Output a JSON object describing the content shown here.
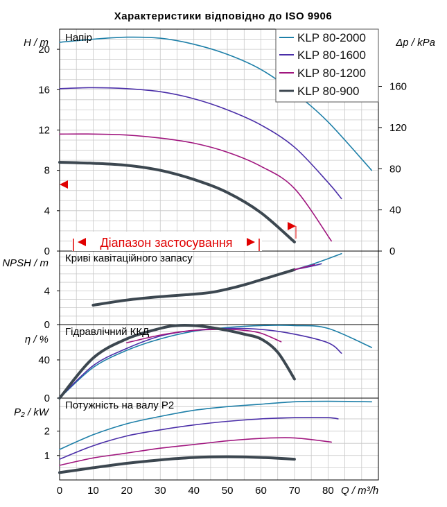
{
  "colors": {
    "KLP 80-2000": "#1d7fa8",
    "KLP 80-1600": "#4a2ea8",
    "KLP 80-1200": "#a0157e",
    "KLP 80-900": "#3c4750",
    "range": "#e00000",
    "grid": "#c8c8c8"
  },
  "chart_data": {
    "type": "line",
    "title": "Характеристики відповідно до ISO 9906",
    "legend": {
      "position": "top-right",
      "entries": [
        "KLP 80-2000",
        "KLP 80-1600",
        "KLP 80-1200",
        "KLP 80-900"
      ]
    },
    "x_axis": {
      "label": "Q / m³/h",
      "range": [
        0,
        95
      ],
      "ticks": [
        "0",
        "10",
        "20",
        "30",
        "40",
        "50",
        "60",
        "70",
        "80"
      ]
    },
    "range_marker": {
      "label": "Діапазон застосування",
      "x_start": 4,
      "x_end": 60,
      "head_marker_left": 8,
      "head_marker_right": {
        "x": 69,
        "y": 2.6
      }
    },
    "panels": [
      {
        "id": "head",
        "title": "Напір",
        "y_axis_label": "H / m",
        "y_range": [
          0,
          22
        ],
        "y_ticks": [
          "0",
          "4",
          "8",
          "12",
          "16",
          "20"
        ],
        "y2_axis_label": "Δp / kPa",
        "y2_range": [
          0,
          215.6
        ],
        "y2_ticks": [
          "0",
          "40",
          "80",
          "120",
          "160"
        ],
        "series": [
          {
            "name": "KLP 80-2000",
            "x": [
              0,
              10,
              20,
              30,
              40,
              50,
              60,
              70,
              80,
              93
            ],
            "y": [
              20.7,
              21.0,
              21.2,
              21.1,
              20.5,
              19.5,
              18.0,
              15.7,
              12.8,
              8.0
            ]
          },
          {
            "name": "KLP 80-1600",
            "x": [
              0,
              10,
              20,
              30,
              40,
              50,
              60,
              70,
              80,
              84
            ],
            "y": [
              16.1,
              16.2,
              16.1,
              15.8,
              15.1,
              14.0,
              12.5,
              10.3,
              6.8,
              5.2
            ]
          },
          {
            "name": "KLP 80-1200",
            "x": [
              0,
              10,
              20,
              30,
              40,
              50,
              60,
              70,
              81
            ],
            "y": [
              11.6,
              11.6,
              11.5,
              11.2,
              10.7,
              9.8,
              8.4,
              6.2,
              1.0
            ]
          },
          {
            "name": "KLP 80-900",
            "x": [
              0,
              10,
              20,
              30,
              40,
              50,
              60,
              70
            ],
            "y": [
              8.8,
              8.7,
              8.5,
              8.0,
              7.1,
              5.8,
              3.8,
              0.9
            ]
          }
        ]
      },
      {
        "id": "npsh",
        "title": "Криві кавітаційного запасу",
        "y_axis_label": "NPSH / m",
        "y_range": [
          0,
          8.7
        ],
        "y_ticks": [
          "0",
          "4"
        ],
        "series": [
          {
            "name": "KLP 80-900",
            "x": [
              10,
              20,
              30,
              40,
              45,
              50,
              55,
              60,
              65,
              70
            ],
            "y": [
              2.3,
              2.9,
              3.3,
              3.6,
              3.8,
              4.2,
              4.7,
              5.3,
              5.9,
              6.5
            ]
          },
          {
            "name": "KLP 80-2000",
            "x": [
              70,
              75,
              80,
              84
            ],
            "y": [
              6.5,
              7.1,
              7.8,
              8.4
            ]
          },
          {
            "name": "KLP 80-1600",
            "x": [
              70,
              75,
              78
            ],
            "y": [
              6.5,
              6.9,
              7.2
            ]
          },
          {
            "name": "KLP 80-1200",
            "x": [
              70,
              73,
              76
            ],
            "y": [
              6.5,
              6.8,
              7.1
            ]
          }
        ]
      },
      {
        "id": "eff",
        "title": "Гідравлічний ККД",
        "y_axis_label": "η / %",
        "y_range": [
          0,
          77
        ],
        "y_ticks": [
          "0",
          "40"
        ],
        "series": [
          {
            "name": "KLP 80-2000",
            "x": [
              0,
              10,
              20,
              30,
              40,
              50,
              60,
              70,
              80,
              93
            ],
            "y": [
              0,
              32,
              50,
              62,
              70,
              74,
              76,
              76,
              73,
              53
            ]
          },
          {
            "name": "KLP 80-1600",
            "x": [
              0,
              10,
              20,
              30,
              40,
              50,
              60,
              70,
              80,
              84
            ],
            "y": [
              0,
              34,
              52,
              65,
              71,
              73,
              72,
              67,
              58,
              47
            ]
          },
          {
            "name": "KLP 80-1200",
            "x": [
              20,
              30,
              40,
              50,
              55,
              60,
              66
            ],
            "y": [
              58,
              66,
              71,
              72,
              71,
              68,
              59
            ]
          },
          {
            "name": "KLP 80-900",
            "x": [
              0,
              10,
              20,
              30,
              35,
              40,
              45,
              50,
              55,
              60,
              65,
              70
            ],
            "y": [
              0,
              42,
              62,
              73,
              76,
              76,
              74,
              71,
              67,
              62,
              48,
              20
            ]
          }
        ]
      },
      {
        "id": "power",
        "title": "Потужність на валу P2",
        "y_axis_label": "P₂ / kW",
        "y_range": [
          0,
          3.35
        ],
        "y_ticks": [
          "1",
          "2"
        ],
        "series": [
          {
            "name": "KLP 80-2000",
            "x": [
              0,
              10,
              20,
              30,
              40,
              50,
              60,
              70,
              80,
              93
            ],
            "y": [
              1.25,
              1.85,
              2.3,
              2.6,
              2.85,
              3.0,
              3.1,
              3.2,
              3.22,
              3.2
            ]
          },
          {
            "name": "KLP 80-1600",
            "x": [
              0,
              10,
              20,
              30,
              40,
              50,
              60,
              70,
              80,
              83
            ],
            "y": [
              0.85,
              1.4,
              1.8,
              2.05,
              2.25,
              2.4,
              2.5,
              2.55,
              2.55,
              2.5
            ]
          },
          {
            "name": "KLP 80-1200",
            "x": [
              0,
              10,
              20,
              30,
              40,
              50,
              60,
              70,
              81
            ],
            "y": [
              0.6,
              0.9,
              1.1,
              1.3,
              1.45,
              1.6,
              1.7,
              1.72,
              1.55
            ]
          },
          {
            "name": "KLP 80-900",
            "x": [
              0,
              10,
              20,
              30,
              40,
              50,
              60,
              70
            ],
            "y": [
              0.3,
              0.5,
              0.68,
              0.82,
              0.92,
              0.95,
              0.92,
              0.85
            ]
          }
        ]
      }
    ]
  }
}
